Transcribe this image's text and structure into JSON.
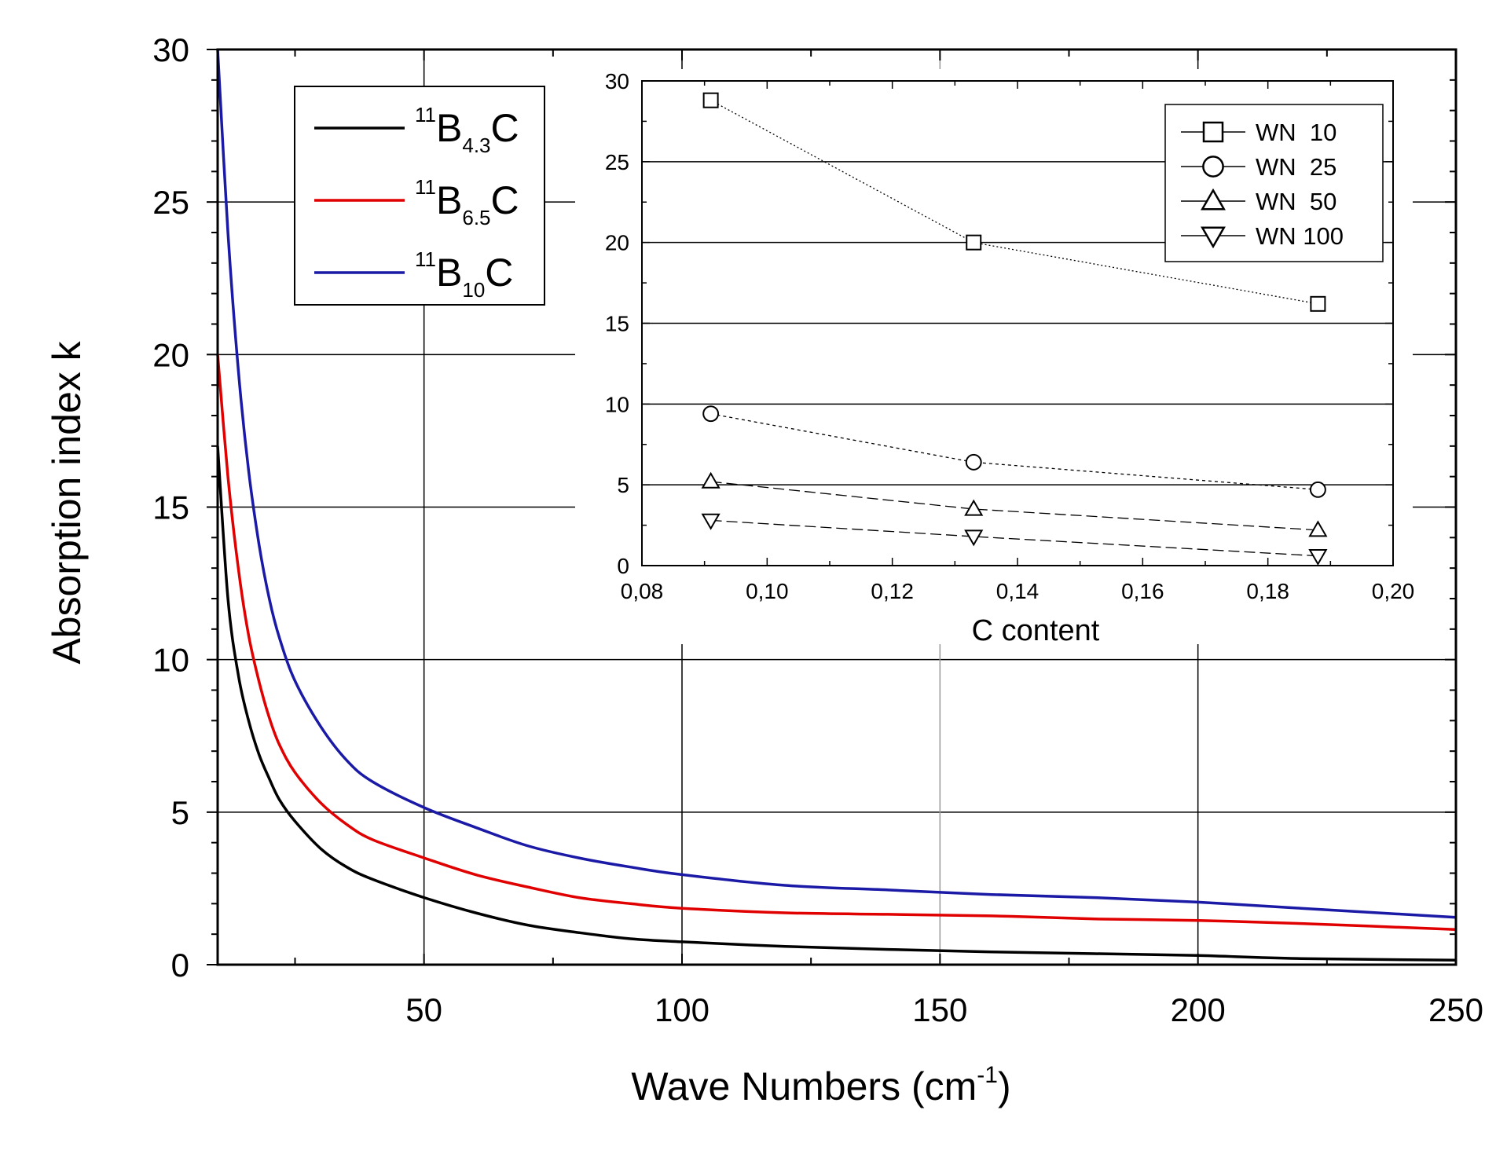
{
  "chart_data": [
    {
      "type": "line",
      "id": "main",
      "xlabel_main": "Wave Numbers (cm",
      "xlabel_sup": "-1",
      "xlabel_close": ")",
      "ylabel": "Absorption index k",
      "xlim": [
        10,
        250
      ],
      "ylim": [
        0,
        30
      ],
      "xticks": [
        50,
        100,
        150,
        200,
        250
      ],
      "yticks": [
        0,
        5,
        10,
        15,
        20,
        25,
        30
      ],
      "grid": true,
      "legend_position": "top-left",
      "series": [
        {
          "name": "11B4.3C",
          "legend": {
            "sup": "11",
            "base": "B",
            "sub": "4.3",
            "tail": "C"
          },
          "color": "#000000",
          "x": [
            10,
            12,
            14,
            16,
            18,
            20,
            22,
            25,
            30,
            35,
            40,
            50,
            60,
            70,
            80,
            90,
            100,
            120,
            140,
            160,
            180,
            200,
            220,
            250
          ],
          "y": [
            17.0,
            12.0,
            9.5,
            8.0,
            6.9,
            6.1,
            5.4,
            4.7,
            3.8,
            3.2,
            2.8,
            2.2,
            1.7,
            1.3,
            1.05,
            0.85,
            0.75,
            0.6,
            0.5,
            0.42,
            0.36,
            0.3,
            0.2,
            0.15
          ]
        },
        {
          "name": "11B6.5C",
          "legend": {
            "sup": "11",
            "base": "B",
            "sub": "6.5",
            "tail": "C"
          },
          "color": "#e00000",
          "x": [
            10,
            12,
            14,
            16,
            18,
            20,
            22,
            25,
            30,
            35,
            40,
            50,
            60,
            70,
            80,
            90,
            100,
            120,
            140,
            160,
            180,
            200,
            220,
            250
          ],
          "y": [
            20.0,
            16.0,
            13.0,
            10.8,
            9.3,
            8.1,
            7.2,
            6.3,
            5.3,
            4.6,
            4.1,
            3.5,
            2.95,
            2.55,
            2.2,
            2.0,
            1.85,
            1.7,
            1.65,
            1.6,
            1.5,
            1.45,
            1.35,
            1.15
          ]
        },
        {
          "name": "11B10C",
          "legend": {
            "sup": "11",
            "base": "B",
            "sub": "10",
            "tail": "C"
          },
          "color": "#1a1aa6",
          "x": [
            10,
            12,
            14,
            16,
            18,
            20,
            22,
            25,
            30,
            35,
            40,
            50,
            60,
            70,
            80,
            90,
            100,
            120,
            140,
            160,
            180,
            200,
            220,
            250
          ],
          "y": [
            30.0,
            24.0,
            19.5,
            16.2,
            13.8,
            12.0,
            10.7,
            9.3,
            7.8,
            6.7,
            6.0,
            5.15,
            4.5,
            3.9,
            3.5,
            3.2,
            2.95,
            2.6,
            2.45,
            2.3,
            2.2,
            2.05,
            1.85,
            1.55
          ]
        }
      ]
    },
    {
      "type": "scatter",
      "id": "inset",
      "xlabel": "C content",
      "ylabel": "",
      "xlim": [
        0.08,
        0.2
      ],
      "ylim": [
        0,
        30
      ],
      "xticks": [
        "0,08",
        "0,10",
        "0,12",
        "0,14",
        "0,16",
        "0,18",
        "0,20"
      ],
      "xtick_values": [
        0.08,
        0.1,
        0.12,
        0.14,
        0.16,
        0.18,
        0.2
      ],
      "yticks": [
        0,
        5,
        10,
        15,
        20,
        25,
        30
      ],
      "grid": true,
      "legend_position": "top-right",
      "series": [
        {
          "name": "WN  10",
          "marker": "square",
          "x": [
            0.091,
            0.133,
            0.188
          ],
          "y": [
            28.8,
            20.0,
            16.2
          ]
        },
        {
          "name": "WN  25",
          "marker": "circle",
          "x": [
            0.091,
            0.133,
            0.188
          ],
          "y": [
            9.4,
            6.4,
            4.7
          ]
        },
        {
          "name": "WN  50",
          "marker": "triangle-up",
          "x": [
            0.091,
            0.133,
            0.188
          ],
          "y": [
            5.2,
            3.5,
            2.2
          ]
        },
        {
          "name": "WN 100",
          "marker": "triangle-down",
          "x": [
            0.091,
            0.133,
            0.188
          ],
          "y": [
            2.8,
            1.8,
            0.6
          ]
        }
      ]
    }
  ]
}
